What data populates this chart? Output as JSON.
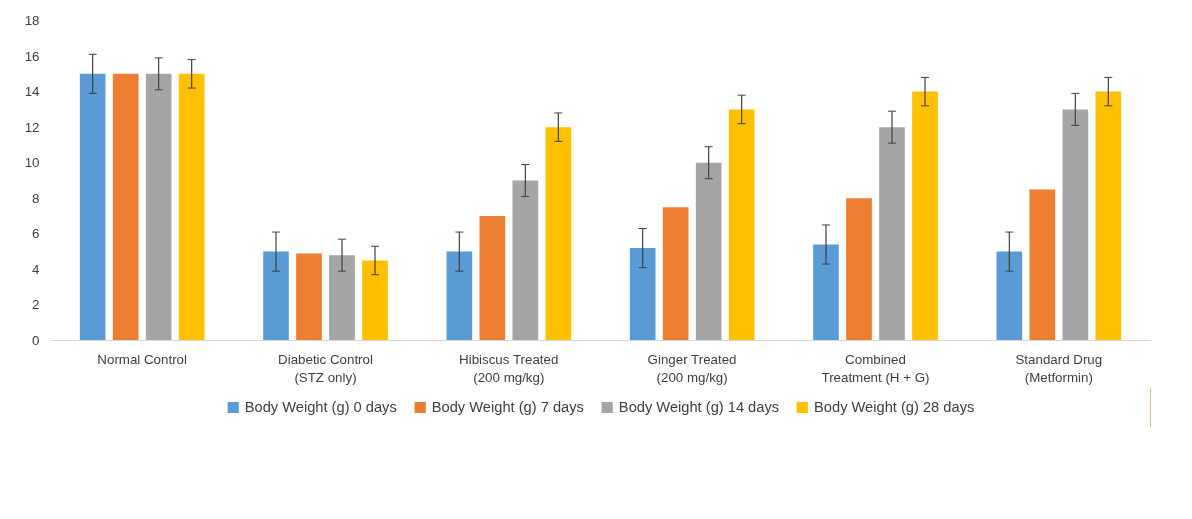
{
  "chart_data": {
    "type": "bar",
    "categories": [
      "Normal Control",
      "Diabetic Control (STZ only)",
      "Hibiscus Treated (200 mg/kg)",
      "Ginger Treated (200 mg/kg)",
      "Combined Treatment (H + G)",
      "Standard Drug (Metformin)"
    ],
    "series": [
      {
        "name": "Body Weight (g) 0 days",
        "color": "#5b9bd5",
        "values": [
          15,
          5,
          5,
          5.2,
          5.4,
          5
        ],
        "errors": [
          1.1,
          1.1,
          1.1,
          1.1,
          1.1,
          1.1
        ]
      },
      {
        "name": "Body Weight (g) 7 days",
        "color": "#ed7d31",
        "values": [
          15,
          4.9,
          7,
          7.5,
          8,
          8.5
        ]
      },
      {
        "name": "Body Weight (g) 14 days",
        "color": "#a5a5a5",
        "values": [
          15,
          4.8,
          9,
          10,
          12,
          13
        ],
        "errors": [
          0.9,
          0.9,
          0.9,
          0.9,
          0.9,
          0.9
        ]
      },
      {
        "name": "Body Weight (g) 28 days",
        "color": "#ffc000",
        "values": [
          15,
          4.5,
          12,
          13,
          14,
          14
        ],
        "errors": [
          0.8,
          0.8,
          0.8,
          0.8,
          0.8,
          0.8
        ]
      }
    ],
    "ylim": [
      0,
      18
    ],
    "yticks": [
      0,
      2,
      4,
      6,
      8,
      10,
      12,
      14,
      16,
      18
    ],
    "grid": false,
    "legend": "bottom"
  }
}
